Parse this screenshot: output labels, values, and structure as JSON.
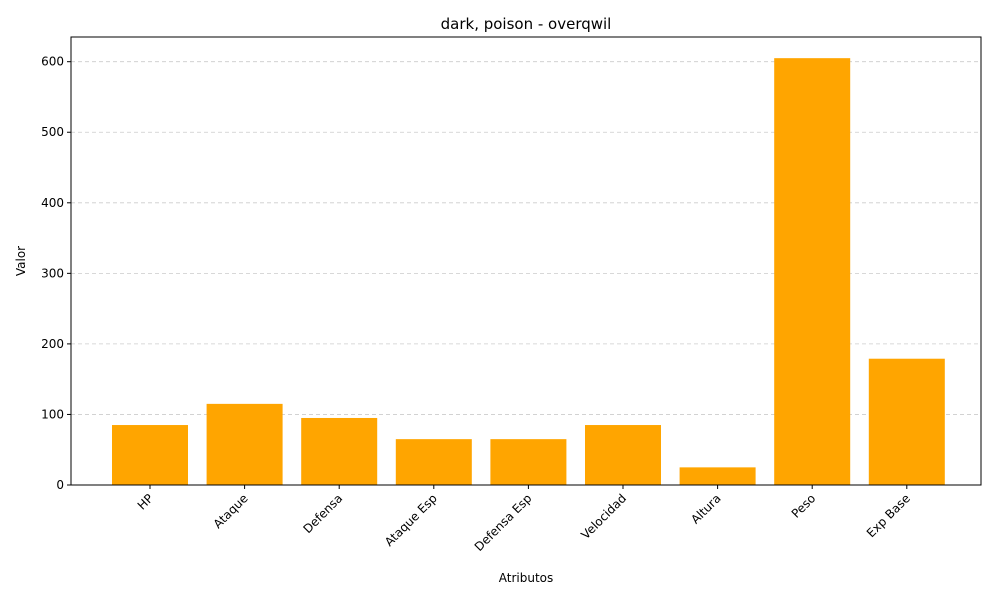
{
  "chart_data": {
    "type": "bar",
    "title": "dark, poison - overqwil",
    "xlabel": "Atributos",
    "ylabel": "Valor",
    "categories": [
      "HP",
      "Ataque",
      "Defensa",
      "Ataque Esp",
      "Defensa Esp",
      "Velocidad",
      "Altura",
      "Peso",
      "Exp Base"
    ],
    "values": [
      85,
      115,
      95,
      65,
      65,
      85,
      25,
      605,
      179
    ],
    "ylim": [
      0,
      635
    ],
    "yticks": [
      0,
      100,
      200,
      300,
      400,
      500,
      600
    ],
    "bar_color": "#FFA500",
    "grid": "y-dashed",
    "legend": "none"
  }
}
